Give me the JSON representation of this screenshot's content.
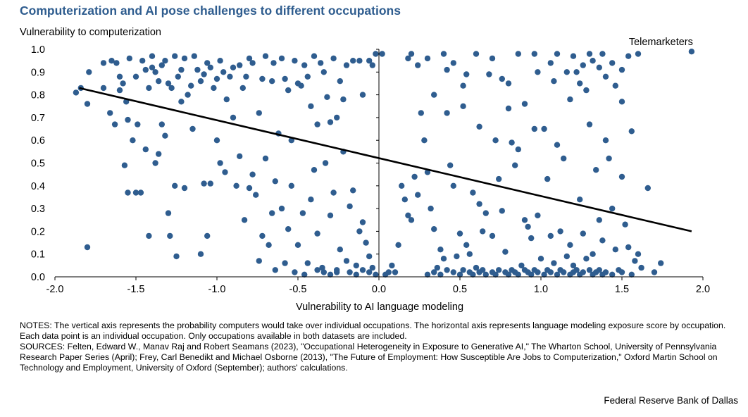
{
  "header": {
    "title": "Computerization and AI pose challenges to different occupations"
  },
  "chart_data": {
    "type": "scatter",
    "title": "Computerization and AI pose challenges to different occupations",
    "xlabel": "Vulnerability to AI language modeling",
    "ylabel": "Vulnerability to computerization",
    "xlim": [
      -2.0,
      2.0
    ],
    "ylim": [
      0.0,
      1.0
    ],
    "x_ticks": [
      "-2.0",
      "-1.5",
      "-1.0",
      "-0.5",
      "0.0",
      "0.5",
      "1.0",
      "1.5",
      "2.0"
    ],
    "y_ticks": [
      "0.0",
      "0.1",
      "0.2",
      "0.3",
      "0.4",
      "0.5",
      "0.6",
      "0.7",
      "0.8",
      "0.9",
      "1.0"
    ],
    "x_tick_values": [
      -2.0,
      -1.5,
      -1.0,
      -0.5,
      0.0,
      0.5,
      1.0,
      1.5,
      2.0
    ],
    "y_tick_values": [
      0,
      0.1,
      0.2,
      0.3,
      0.4,
      0.5,
      0.6,
      0.7,
      0.8,
      0.9,
      1.0
    ],
    "grid": false,
    "point_color": "#2f5d8f",
    "trendline": {
      "x": [
        -1.85,
        1.93
      ],
      "y": [
        0.83,
        0.2
      ],
      "color": "#000000"
    },
    "annotations": [
      {
        "text": "Telemarketers",
        "x": 1.93,
        "y": 0.99
      }
    ],
    "points": [
      [
        1.93,
        0.99
      ],
      [
        -1.8,
        0.13
      ],
      [
        -1.87,
        0.81
      ],
      [
        -1.84,
        0.83
      ],
      [
        -1.8,
        0.76
      ],
      [
        -1.79,
        0.9
      ],
      [
        -1.7,
        0.94
      ],
      [
        -1.7,
        0.83
      ],
      [
        -1.66,
        0.72
      ],
      [
        -1.65,
        0.95
      ],
      [
        -1.63,
        0.67
      ],
      [
        -1.6,
        0.88
      ],
      [
        -1.6,
        0.82
      ],
      [
        -1.57,
        0.49
      ],
      [
        -1.56,
        0.77
      ],
      [
        -1.55,
        0.37
      ],
      [
        -1.55,
        0.69
      ],
      [
        -1.52,
        0.6
      ],
      [
        -1.5,
        0.37
      ],
      [
        -1.49,
        0.67
      ],
      [
        -1.47,
        0.37
      ],
      [
        -1.44,
        0.56
      ],
      [
        -1.42,
        0.18
      ],
      [
        -1.4,
        0.92
      ],
      [
        -1.38,
        0.5
      ],
      [
        -1.36,
        0.54
      ],
      [
        -1.34,
        0.67
      ],
      [
        -1.32,
        0.62
      ],
      [
        -1.3,
        0.28
      ],
      [
        -1.29,
        0.18
      ],
      [
        -1.26,
        0.4
      ],
      [
        -1.25,
        0.09
      ],
      [
        -1.22,
        0.77
      ],
      [
        -1.2,
        0.39
      ],
      [
        -1.15,
        0.65
      ],
      [
        -1.1,
        0.1
      ],
      [
        -1.08,
        0.41
      ],
      [
        -1.06,
        0.18
      ],
      [
        -1.04,
        0.41
      ],
      [
        -1.0,
        0.6
      ],
      [
        -0.98,
        0.5
      ],
      [
        -0.95,
        0.46
      ],
      [
        -0.9,
        0.7
      ],
      [
        -0.88,
        0.4
      ],
      [
        -0.86,
        0.53
      ],
      [
        -0.83,
        0.25
      ],
      [
        -0.8,
        0.39
      ],
      [
        -0.78,
        0.45
      ],
      [
        -0.76,
        0.36
      ],
      [
        -0.74,
        0.07
      ],
      [
        -0.72,
        0.18
      ],
      [
        -0.7,
        0.52
      ],
      [
        -0.68,
        0.14
      ],
      [
        -0.66,
        0.28
      ],
      [
        -0.64,
        0.42
      ],
      [
        -0.6,
        0.3
      ],
      [
        -0.58,
        0.06
      ],
      [
        -0.56,
        0.21
      ],
      [
        -0.54,
        0.4
      ],
      [
        -0.5,
        0.14
      ],
      [
        -0.47,
        0.28
      ],
      [
        -0.44,
        0.06
      ],
      [
        -0.42,
        0.34
      ],
      [
        -0.4,
        0.47
      ],
      [
        -0.38,
        0.19
      ],
      [
        -0.35,
        0.04
      ],
      [
        -0.33,
        0.5
      ],
      [
        -0.3,
        0.27
      ],
      [
        -0.28,
        0.37
      ],
      [
        -0.26,
        0.02
      ],
      [
        -0.24,
        0.12
      ],
      [
        -0.22,
        0.55
      ],
      [
        -0.2,
        0.07
      ],
      [
        -0.18,
        0.31
      ],
      [
        -0.16,
        0.38
      ],
      [
        -0.14,
        0.05
      ],
      [
        -0.12,
        0.2
      ],
      [
        -0.1,
        0.24
      ],
      [
        -0.08,
        0.15
      ],
      [
        -0.06,
        0.09
      ],
      [
        -0.04,
        0.04
      ],
      [
        -0.02,
        0.01
      ],
      [
        -0.02,
        0.98
      ],
      [
        -0.04,
        0.93
      ],
      [
        -0.1,
        0.8
      ],
      [
        -0.16,
        0.95
      ],
      [
        -0.2,
        0.93
      ],
      [
        -0.22,
        0.78
      ],
      [
        -0.26,
        0.7
      ],
      [
        -0.3,
        0.68
      ],
      [
        -0.34,
        0.9
      ],
      [
        -0.38,
        0.67
      ],
      [
        -0.42,
        0.75
      ],
      [
        -0.46,
        0.93
      ],
      [
        -0.5,
        0.85
      ],
      [
        -0.54,
        0.6
      ],
      [
        -0.58,
        0.87
      ],
      [
        -0.62,
        0.63
      ],
      [
        -0.65,
        0.94
      ],
      [
        -0.7,
        0.97
      ],
      [
        -0.74,
        0.72
      ],
      [
        -0.78,
        0.94
      ],
      [
        -0.82,
        0.88
      ],
      [
        -0.86,
        0.93
      ],
      [
        -0.9,
        0.92
      ],
      [
        -0.94,
        0.78
      ],
      [
        -0.98,
        0.95
      ],
      [
        -1.02,
        0.83
      ],
      [
        -1.06,
        0.94
      ],
      [
        -1.1,
        0.86
      ],
      [
        -1.14,
        0.97
      ],
      [
        -1.18,
        0.8
      ],
      [
        -1.22,
        0.91
      ],
      [
        -1.26,
        0.97
      ],
      [
        -1.3,
        0.85
      ],
      [
        -1.34,
        0.93
      ],
      [
        -1.38,
        0.9
      ],
      [
        -1.42,
        0.83
      ],
      [
        -1.46,
        0.95
      ],
      [
        -1.5,
        0.88
      ],
      [
        -1.54,
        0.96
      ],
      [
        -1.58,
        0.85
      ],
      [
        -1.62,
        0.94
      ],
      [
        -0.28,
        0.96
      ],
      [
        -0.24,
        0.86
      ],
      [
        -0.12,
        0.95
      ],
      [
        -0.06,
        0.95
      ],
      [
        -0.4,
        0.97
      ],
      [
        -0.48,
        0.84
      ],
      [
        -0.56,
        0.82
      ],
      [
        -0.66,
        0.86
      ],
      [
        -0.72,
        0.87
      ],
      [
        -0.8,
        0.96
      ],
      [
        -0.84,
        0.83
      ],
      [
        -0.92,
        0.88
      ],
      [
        -0.96,
        0.9
      ],
      [
        -1.0,
        0.87
      ],
      [
        -1.04,
        0.92
      ],
      [
        -1.08,
        0.89
      ],
      [
        -1.12,
        0.91
      ],
      [
        -1.16,
        0.84
      ],
      [
        -1.2,
        0.96
      ],
      [
        -1.24,
        0.88
      ],
      [
        -1.28,
        0.83
      ],
      [
        -1.32,
        0.95
      ],
      [
        -1.36,
        0.86
      ],
      [
        -1.4,
        0.97
      ],
      [
        -1.44,
        0.91
      ],
      [
        -0.6,
        0.96
      ],
      [
        -0.52,
        0.95
      ],
      [
        -0.44,
        0.88
      ],
      [
        -0.36,
        0.94
      ],
      [
        -0.32,
        0.79
      ],
      [
        0.02,
        0.98
      ],
      [
        0.04,
        0.01
      ],
      [
        0.06,
        0.02
      ],
      [
        0.08,
        0.05
      ],
      [
        0.1,
        0.02
      ],
      [
        0.12,
        0.14
      ],
      [
        0.14,
        0.4
      ],
      [
        0.16,
        0.34
      ],
      [
        0.18,
        0.27
      ],
      [
        0.2,
        0.25
      ],
      [
        0.22,
        0.44
      ],
      [
        0.24,
        0.36
      ],
      [
        0.26,
        0.72
      ],
      [
        0.28,
        0.6
      ],
      [
        0.3,
        0.46
      ],
      [
        0.32,
        0.3
      ],
      [
        0.34,
        0.21
      ],
      [
        0.36,
        0.04
      ],
      [
        0.38,
        0.12
      ],
      [
        0.4,
        0.08
      ],
      [
        0.42,
        0.91
      ],
      [
        0.44,
        0.49
      ],
      [
        0.46,
        0.4
      ],
      [
        0.48,
        0.09
      ],
      [
        0.5,
        0.19
      ],
      [
        0.52,
        0.84
      ],
      [
        0.54,
        0.14
      ],
      [
        0.56,
        0.1
      ],
      [
        0.58,
        0.37
      ],
      [
        0.6,
        0.04
      ],
      [
        0.62,
        0.32
      ],
      [
        0.64,
        0.2
      ],
      [
        0.66,
        0.28
      ],
      [
        0.68,
        0.89
      ],
      [
        0.7,
        0.18
      ],
      [
        0.72,
        0.6
      ],
      [
        0.74,
        0.43
      ],
      [
        0.76,
        0.29
      ],
      [
        0.78,
        0.11
      ],
      [
        0.8,
        0.74
      ],
      [
        0.82,
        0.59
      ],
      [
        0.84,
        0.49
      ],
      [
        0.86,
        0.56
      ],
      [
        0.88,
        0.05
      ],
      [
        0.9,
        0.25
      ],
      [
        0.92,
        0.22
      ],
      [
        0.94,
        0.17
      ],
      [
        0.96,
        0.65
      ],
      [
        0.98,
        0.27
      ],
      [
        1.0,
        0.08
      ],
      [
        1.02,
        0.65
      ],
      [
        1.04,
        0.43
      ],
      [
        1.06,
        0.18
      ],
      [
        1.08,
        0.06
      ],
      [
        1.1,
        0.58
      ],
      [
        1.12,
        0.2
      ],
      [
        1.14,
        0.52
      ],
      [
        1.16,
        0.09
      ],
      [
        1.18,
        0.14
      ],
      [
        1.2,
        0.05
      ],
      [
        1.22,
        0.9
      ],
      [
        1.24,
        0.34
      ],
      [
        1.26,
        0.19
      ],
      [
        1.28,
        0.08
      ],
      [
        1.3,
        0.67
      ],
      [
        1.32,
        0.1
      ],
      [
        1.34,
        0.47
      ],
      [
        1.36,
        0.25
      ],
      [
        1.38,
        0.16
      ],
      [
        1.4,
        0.6
      ],
      [
        1.42,
        0.52
      ],
      [
        1.44,
        0.3
      ],
      [
        1.46,
        0.12
      ],
      [
        1.48,
        0.03
      ],
      [
        1.5,
        0.44
      ],
      [
        1.52,
        0.23
      ],
      [
        1.54,
        0.13
      ],
      [
        1.56,
        0.64
      ],
      [
        1.58,
        0.07
      ],
      [
        1.6,
        0.1
      ],
      [
        1.62,
        0.04
      ],
      [
        1.66,
        0.39
      ],
      [
        1.7,
        0.02
      ],
      [
        1.74,
        0.06
      ],
      [
        0.18,
        0.96
      ],
      [
        0.2,
        0.98
      ],
      [
        0.3,
        0.96
      ],
      [
        0.4,
        0.98
      ],
      [
        0.46,
        0.94
      ],
      [
        0.54,
        0.89
      ],
      [
        0.6,
        0.98
      ],
      [
        0.7,
        0.96
      ],
      [
        0.76,
        0.87
      ],
      [
        0.86,
        0.98
      ],
      [
        0.96,
        0.98
      ],
      [
        1.06,
        0.94
      ],
      [
        1.1,
        0.98
      ],
      [
        1.16,
        0.9
      ],
      [
        1.2,
        0.97
      ],
      [
        1.26,
        0.93
      ],
      [
        1.3,
        0.98
      ],
      [
        1.36,
        0.92
      ],
      [
        1.4,
        0.88
      ],
      [
        1.44,
        0.94
      ],
      [
        1.5,
        0.91
      ],
      [
        1.54,
        0.97
      ],
      [
        1.6,
        0.98
      ],
      [
        1.24,
        0.85
      ],
      [
        1.28,
        0.82
      ],
      [
        1.18,
        0.78
      ],
      [
        1.08,
        0.86
      ],
      [
        0.98,
        0.9
      ],
      [
        0.9,
        0.76
      ],
      [
        0.8,
        0.85
      ],
      [
        0.62,
        0.66
      ],
      [
        0.52,
        0.75
      ],
      [
        0.42,
        0.72
      ],
      [
        0.34,
        0.8
      ],
      [
        0.24,
        0.93
      ],
      [
        1.46,
        0.84
      ],
      [
        1.5,
        0.77
      ],
      [
        1.32,
        0.95
      ],
      [
        1.38,
        0.98
      ]
    ],
    "bottom_cluster": [
      [
        0.3,
        0.01
      ],
      [
        0.34,
        0.02
      ],
      [
        0.38,
        0.01
      ],
      [
        0.42,
        0.03
      ],
      [
        0.46,
        0.02
      ],
      [
        0.5,
        0.01
      ],
      [
        0.52,
        0.03
      ],
      [
        0.56,
        0.02
      ],
      [
        0.58,
        0.01
      ],
      [
        0.62,
        0.02
      ],
      [
        0.64,
        0.03
      ],
      [
        0.66,
        0.01
      ],
      [
        0.7,
        0.02
      ],
      [
        0.72,
        0.01
      ],
      [
        0.74,
        0.03
      ],
      [
        0.78,
        0.02
      ],
      [
        0.8,
        0.01
      ],
      [
        0.82,
        0.03
      ],
      [
        0.84,
        0.02
      ],
      [
        0.86,
        0.01
      ],
      [
        0.9,
        0.03
      ],
      [
        0.92,
        0.02
      ],
      [
        0.94,
        0.01
      ],
      [
        0.96,
        0.03
      ],
      [
        0.98,
        0.02
      ],
      [
        1.02,
        0.01
      ],
      [
        1.04,
        0.03
      ],
      [
        1.06,
        0.02
      ],
      [
        1.1,
        0.01
      ],
      [
        1.12,
        0.03
      ],
      [
        1.14,
        0.02
      ],
      [
        1.18,
        0.01
      ],
      [
        1.2,
        0.02
      ],
      [
        1.22,
        0.03
      ],
      [
        1.24,
        0.01
      ],
      [
        1.26,
        0.02
      ],
      [
        1.3,
        0.03
      ],
      [
        1.32,
        0.01
      ],
      [
        1.34,
        0.02
      ],
      [
        1.36,
        0.03
      ],
      [
        1.38,
        0.01
      ],
      [
        1.4,
        0.02
      ],
      [
        1.44,
        0.01
      ],
      [
        1.5,
        0.02
      ],
      [
        1.56,
        0.01
      ],
      [
        -0.38,
        0.03
      ],
      [
        -0.34,
        0.02
      ],
      [
        -0.3,
        0.01
      ],
      [
        -0.26,
        0.03
      ],
      [
        -0.18,
        0.02
      ],
      [
        -0.14,
        0.01
      ],
      [
        -0.1,
        0.03
      ],
      [
        -0.06,
        0.02
      ],
      [
        -0.64,
        0.03
      ],
      [
        -0.52,
        0.02
      ],
      [
        -0.46,
        0.01
      ]
    ]
  },
  "notes": {
    "text": "NOTES: The vertical axis represents the probability computers would take over individual occupations. The horizontal axis represents language modeling exposure score by occupation. Each data point is an individual occupation. Only occupations available in both datasets are included.",
    "sources": "SOURCES: Felten, Edward W., Manav  Raj and Robert Seamans (2023), \"Occupational Heterogeneity in Exposure to Generative AI,\" The Wharton School, University of Pennsylvania Research Paper Series (April); Frey, Carl Benedikt and Michael Osborne (2013), \"The Future of Employment: How Susceptible Are Jobs to Computerization,\" Oxford Martin School on Technology and Employment, University of Oxford (September); authors' calculations."
  },
  "credit": "Federal Reserve Bank of Dallas"
}
